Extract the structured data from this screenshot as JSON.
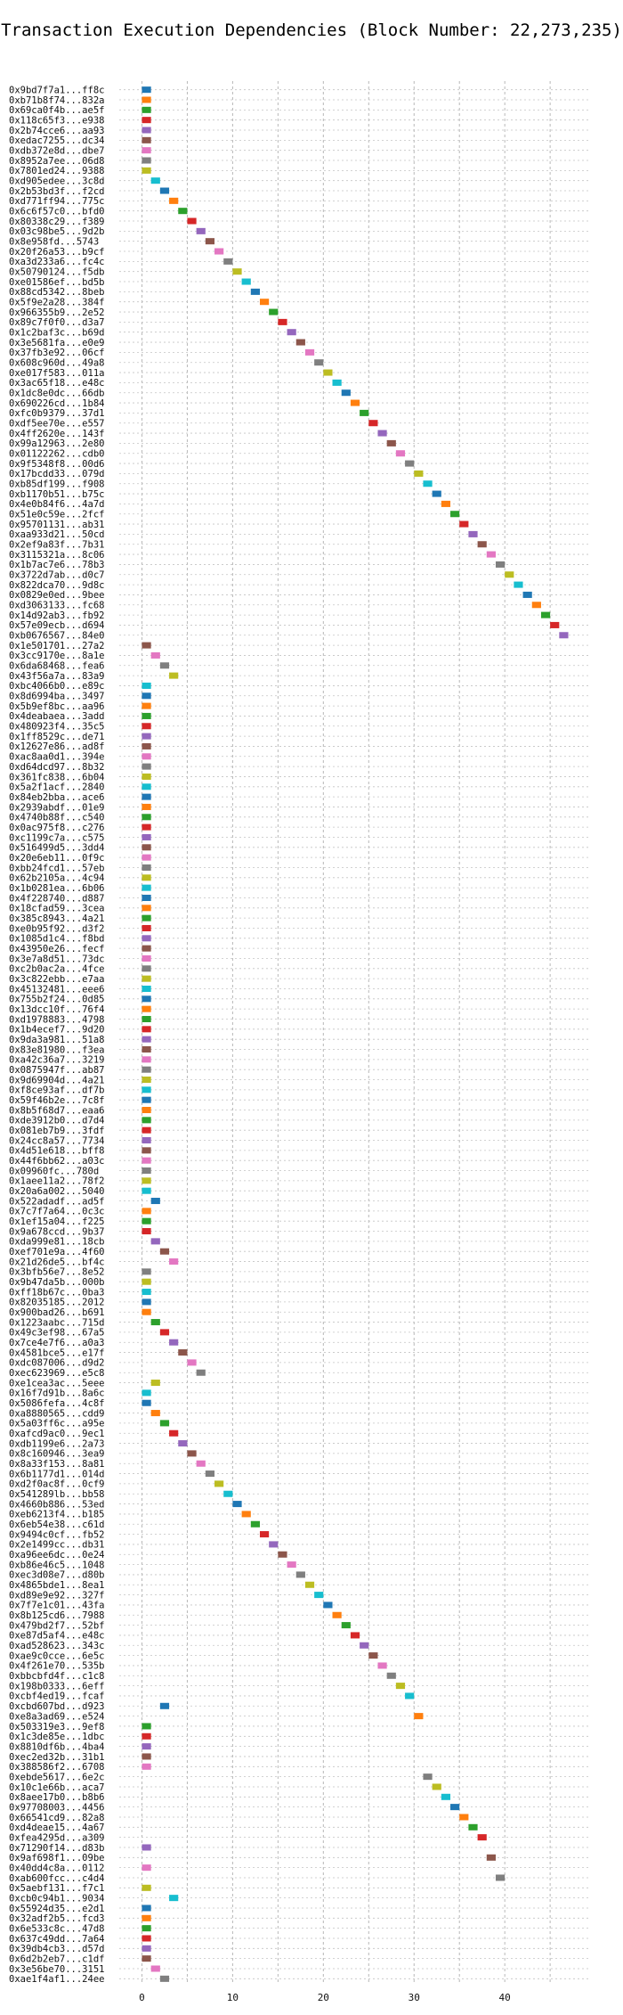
{
  "chart_data": {
    "type": "bar",
    "orientation": "horizontal",
    "title": "Transaction Execution Dependencies (Block Number: 22,273,235)",
    "xlabel": "",
    "ylabel": "",
    "xlim": [
      -2.5,
      49.5
    ],
    "xticks": [
      0,
      10,
      20,
      30,
      40
    ],
    "grid": true,
    "bar_width": 1,
    "palette": [
      "#1f77b4",
      "#ff7f0e",
      "#2ca02c",
      "#d62728",
      "#9467bd",
      "#8c564b",
      "#e377c2",
      "#7f7f7f",
      "#bcbd22",
      "#17becf"
    ],
    "transactions": [
      {
        "label": "0x9bd7f7a1...ff8c",
        "start": 0
      },
      {
        "label": "0xb71b8f74...832a",
        "start": 0
      },
      {
        "label": "0x69ca0f4b...ae5f",
        "start": 0
      },
      {
        "label": "0x118c65f3...e938",
        "start": 0
      },
      {
        "label": "0x2b74cce6...aa93",
        "start": 0
      },
      {
        "label": "0xedac7255...dc34",
        "start": 0
      },
      {
        "label": "0xdb372e8d...dbe7",
        "start": 0
      },
      {
        "label": "0x8952a7ee...06d8",
        "start": 0
      },
      {
        "label": "0x7801ed24...9388",
        "start": 0
      },
      {
        "label": "0xd905edee...3c8d",
        "start": 1
      },
      {
        "label": "0x2b53bd3f...f2cd",
        "start": 2
      },
      {
        "label": "0xd771ff94...775c",
        "start": 3
      },
      {
        "label": "0x6c6f57c0...bfd0",
        "start": 4
      },
      {
        "label": "0x80338c29...f389",
        "start": 5
      },
      {
        "label": "0x03c98be5...9d2b",
        "start": 6
      },
      {
        "label": "0x8e958fd...5743",
        "start": 7
      },
      {
        "label": "0x20f26a53...b9cf",
        "start": 8
      },
      {
        "label": "0xa3d233a6...fc4c",
        "start": 9
      },
      {
        "label": "0x50790124...f5db",
        "start": 10
      },
      {
        "label": "0xe01586ef...bd5b",
        "start": 11
      },
      {
        "label": "0x88cd5342...8beb",
        "start": 12
      },
      {
        "label": "0x5f9e2a28...384f",
        "start": 13
      },
      {
        "label": "0x966355b9...2e52",
        "start": 14
      },
      {
        "label": "0x89c7f0f0...d3a7",
        "start": 15
      },
      {
        "label": "0x1c2baf3c...b69d",
        "start": 16
      },
      {
        "label": "0x3e5681fa...e0e9",
        "start": 17
      },
      {
        "label": "0x37fb3e92...06cf",
        "start": 18
      },
      {
        "label": "0x608c960d...49a8",
        "start": 19
      },
      {
        "label": "0xe017f583...011a",
        "start": 20
      },
      {
        "label": "0x3ac65f18...e48c",
        "start": 21
      },
      {
        "label": "0x1dc8e0dc...66db",
        "start": 22
      },
      {
        "label": "0x690226cd...1b84",
        "start": 23
      },
      {
        "label": "0xfc0b9379...37d1",
        "start": 24
      },
      {
        "label": "0xdf5ee70e...e557",
        "start": 25
      },
      {
        "label": "0x4ff2620e...143f",
        "start": 26
      },
      {
        "label": "0x99a12963...2e80",
        "start": 27
      },
      {
        "label": "0x01122262...cdb0",
        "start": 28
      },
      {
        "label": "0x9f5348f8...00d6",
        "start": 29
      },
      {
        "label": "0x17bcdd33...079d",
        "start": 30
      },
      {
        "label": "0xb85df199...f908",
        "start": 31
      },
      {
        "label": "0xb1170b51...b75c",
        "start": 32
      },
      {
        "label": "0x4e0b84f6...4a7d",
        "start": 33
      },
      {
        "label": "0x51e0c59e...2fcf",
        "start": 34
      },
      {
        "label": "0x95701131...ab31",
        "start": 35
      },
      {
        "label": "0xaa933d21...50cd",
        "start": 36
      },
      {
        "label": "0x2ef9a83f...7b31",
        "start": 37
      },
      {
        "label": "0x3115321a...8c06",
        "start": 38
      },
      {
        "label": "0x1b7ac7e6...78b3",
        "start": 39
      },
      {
        "label": "0x3722d7ab...d0c7",
        "start": 40
      },
      {
        "label": "0x822dca70...9d8c",
        "start": 41
      },
      {
        "label": "0x0829e0ed...9bee",
        "start": 42
      },
      {
        "label": "0xd3063133...fc68",
        "start": 43
      },
      {
        "label": "0x14d92ab3...fb92",
        "start": 44
      },
      {
        "label": "0x57e09ecb...d694",
        "start": 45
      },
      {
        "label": "0xb0676567...84e0",
        "start": 46
      },
      {
        "label": "0x1e501701...27a2",
        "start": 0
      },
      {
        "label": "0x3cc9170e...8a1e",
        "start": 1
      },
      {
        "label": "0x6da68468...fea6",
        "start": 2
      },
      {
        "label": "0x43f56a7a...83a9",
        "start": 3
      },
      {
        "label": "0xbc4066b0...e89c",
        "start": 0
      },
      {
        "label": "0x8d6994ba...3497",
        "start": 0
      },
      {
        "label": "0x5b9ef8bc...aa96",
        "start": 0
      },
      {
        "label": "0x4deabaea...3add",
        "start": 0
      },
      {
        "label": "0x480923f4...35c5",
        "start": 0
      },
      {
        "label": "0x1ff8529c...de71",
        "start": 0
      },
      {
        "label": "0x12627e86...ad8f",
        "start": 0
      },
      {
        "label": "0xac8aa0d1...394e",
        "start": 0
      },
      {
        "label": "0xd64dcd97...8b32",
        "start": 0
      },
      {
        "label": "0x361fc838...6b04",
        "start": 0
      },
      {
        "label": "0x5a2f1acf...2840",
        "start": 0
      },
      {
        "label": "0x84eb2bba...ace6",
        "start": 0
      },
      {
        "label": "0x2939abdf...01e9",
        "start": 0
      },
      {
        "label": "0x4740b88f...c540",
        "start": 0
      },
      {
        "label": "0x0ac975f8...c276",
        "start": 0
      },
      {
        "label": "0xc1199c7a...c575",
        "start": 0
      },
      {
        "label": "0x516499d5...3dd4",
        "start": 0
      },
      {
        "label": "0x20e6eb11...0f9c",
        "start": 0
      },
      {
        "label": "0xbb24fcd1...57eb",
        "start": 0
      },
      {
        "label": "0x62b2105a...4c94",
        "start": 0
      },
      {
        "label": "0x1b0281ea...6b06",
        "start": 0
      },
      {
        "label": "0x4f228740...d887",
        "start": 0
      },
      {
        "label": "0x18cfad59...3cea",
        "start": 0
      },
      {
        "label": "0x385c8943...4a21",
        "start": 0
      },
      {
        "label": "0xe0b95f92...d3f2",
        "start": 0
      },
      {
        "label": "0x1085d1c4...f8bd",
        "start": 0
      },
      {
        "label": "0x43950e26...fecf",
        "start": 0
      },
      {
        "label": "0x3e7a8d51...73dc",
        "start": 0
      },
      {
        "label": "0xc2b0ac2a...4fce",
        "start": 0
      },
      {
        "label": "0x3c822ebb...e7aa",
        "start": 0
      },
      {
        "label": "0x45132481...eee6",
        "start": 0
      },
      {
        "label": "0x755b2f24...0d85",
        "start": 0
      },
      {
        "label": "0x13dcc10f...76f4",
        "start": 0
      },
      {
        "label": "0xd1978883...4798",
        "start": 0
      },
      {
        "label": "0x1b4ecef7...9d20",
        "start": 0
      },
      {
        "label": "0x9da3a981...51a8",
        "start": 0
      },
      {
        "label": "0x83e81980...f3ea",
        "start": 0
      },
      {
        "label": "0xa42c36a7...3219",
        "start": 0
      },
      {
        "label": "0x0875947f...ab87",
        "start": 0
      },
      {
        "label": "0x9d69904d...4a21",
        "start": 0
      },
      {
        "label": "0xf8ce93af...df7b",
        "start": 0
      },
      {
        "label": "0x59f46b2e...7c8f",
        "start": 0
      },
      {
        "label": "0x8b5f68d7...eaa6",
        "start": 0
      },
      {
        "label": "0xde3912b0...d7d4",
        "start": 0
      },
      {
        "label": "0x081eb7b9...3fdf",
        "start": 0
      },
      {
        "label": "0x24cc8a57...7734",
        "start": 0
      },
      {
        "label": "0x4d51e618...bff8",
        "start": 0
      },
      {
        "label": "0x44f6bb62...a03c",
        "start": 0
      },
      {
        "label": "0x09960fc...780d",
        "start": 0
      },
      {
        "label": "0x1aee11a2...78f2",
        "start": 0
      },
      {
        "label": "0x20a6a002...5040",
        "start": 0
      },
      {
        "label": "0x522adadf...ad5f",
        "start": 1
      },
      {
        "label": "0x7c7f7a64...0c3c",
        "start": 0
      },
      {
        "label": "0x1ef15a04...f225",
        "start": 0
      },
      {
        "label": "0x9a678ccd...9b37",
        "start": 0
      },
      {
        "label": "0xda999e81...18cb",
        "start": 1
      },
      {
        "label": "0xef701e9a...4f60",
        "start": 2
      },
      {
        "label": "0x21d26de5...bf4c",
        "start": 3
      },
      {
        "label": "0x3bfb56e7...8e52",
        "start": 0
      },
      {
        "label": "0x9b47da5b...000b",
        "start": 0
      },
      {
        "label": "0xff18b67c...0ba3",
        "start": 0
      },
      {
        "label": "0x82035185...2012",
        "start": 0
      },
      {
        "label": "0x900bad26...b691",
        "start": 0
      },
      {
        "label": "0x1223aabc...715d",
        "start": 1
      },
      {
        "label": "0x49c3ef98...67a5",
        "start": 2
      },
      {
        "label": "0x7ce4e7f6...a0a3",
        "start": 3
      },
      {
        "label": "0x4581bce5...e17f",
        "start": 4
      },
      {
        "label": "0xdc087006...d9d2",
        "start": 5
      },
      {
        "label": "0xec623969...e5c8",
        "start": 6
      },
      {
        "label": "0xe1cea3ac...5eee",
        "start": 1
      },
      {
        "label": "0x16f7d91b...8a6c",
        "start": 0
      },
      {
        "label": "0x5086fefa...4c8f",
        "start": 0
      },
      {
        "label": "0xa8880565...cdd9",
        "start": 1
      },
      {
        "label": "0x5a03ff6c...a95e",
        "start": 2
      },
      {
        "label": "0xafcd9ac0...9ec1",
        "start": 3
      },
      {
        "label": "0xdb1199e6...2a73",
        "start": 4
      },
      {
        "label": "0x8c160946...3ea9",
        "start": 5
      },
      {
        "label": "0x8a33f153...8a81",
        "start": 6
      },
      {
        "label": "0x6b1177d1...014d",
        "start": 7
      },
      {
        "label": "0xd2f0ac8f...0cf9",
        "start": 8
      },
      {
        "label": "0x541289lb...bb58",
        "start": 9
      },
      {
        "label": "0x4660b886...53ed",
        "start": 10
      },
      {
        "label": "0xeb6213f4...b185",
        "start": 11
      },
      {
        "label": "0x6eb54e38...c61d",
        "start": 12
      },
      {
        "label": "0x9494c0cf...fb52",
        "start": 13
      },
      {
        "label": "0x2e1499cc...db31",
        "start": 14
      },
      {
        "label": "0xa96ee6dc...0e24",
        "start": 15
      },
      {
        "label": "0xb86e46c5...1048",
        "start": 16
      },
      {
        "label": "0xec3d08e7...d80b",
        "start": 17
      },
      {
        "label": "0x4865bde1...8ea1",
        "start": 18
      },
      {
        "label": "0xd89e9e92...327f",
        "start": 19
      },
      {
        "label": "0x7f7e1c01...43fa",
        "start": 20
      },
      {
        "label": "0x8b125cd6...7988",
        "start": 21
      },
      {
        "label": "0x479bd2f7...52bf",
        "start": 22
      },
      {
        "label": "0xe87d5af4...e48c",
        "start": 23
      },
      {
        "label": "0xad528623...343c",
        "start": 24
      },
      {
        "label": "0xae9c0cce...6e5c",
        "start": 25
      },
      {
        "label": "0x4f261e70...535b",
        "start": 26
      },
      {
        "label": "0xbbcbfd4f...c1c8",
        "start": 27
      },
      {
        "label": "0x198b0333...6eff",
        "start": 28
      },
      {
        "label": "0xcbf4ed19...fcaf",
        "start": 29
      },
      {
        "label": "0xcbd607bd...d923",
        "start": 2
      },
      {
        "label": "0xe8a3ad69...e524",
        "start": 30
      },
      {
        "label": "0x503319e3...9ef8",
        "start": 0
      },
      {
        "label": "0x1c3de85e...1dbc",
        "start": 0
      },
      {
        "label": "0x8810df6b...4ba4",
        "start": 0
      },
      {
        "label": "0xec2ed32b...31b1",
        "start": 0
      },
      {
        "label": "0x388586f2...6708",
        "start": 0
      },
      {
        "label": "0xebde5617...6e2c",
        "start": 31
      },
      {
        "label": "0x10c1e66b...aca7",
        "start": 32
      },
      {
        "label": "0x8aee17b0...b8b6",
        "start": 33
      },
      {
        "label": "0x97708003...4456",
        "start": 34
      },
      {
        "label": "0x66541cd9...82a8",
        "start": 35
      },
      {
        "label": "0xd4deae15...4a67",
        "start": 36
      },
      {
        "label": "0xfea4295d...a309",
        "start": 37
      },
      {
        "label": "0x71290f14...d83b",
        "start": 0
      },
      {
        "label": "0x9af698f1...09be",
        "start": 38
      },
      {
        "label": "0x40dd4c8a...0112",
        "start": 0
      },
      {
        "label": "0xab600fcc...c4d4",
        "start": 39
      },
      {
        "label": "0x5aebf131...f7c1",
        "start": 0
      },
      {
        "label": "0xcb0c94b1...9034",
        "start": 3
      },
      {
        "label": "0x55924d35...e2d1",
        "start": 0
      },
      {
        "label": "0x32adf2b5...fcd3",
        "start": 0
      },
      {
        "label": "0x6e533c8c...47d8",
        "start": 0
      },
      {
        "label": "0x637c49dd...7a64",
        "start": 0
      },
      {
        "label": "0x39db4cb3...d57d",
        "start": 0
      },
      {
        "label": "0x6d2b2eb7...c1df",
        "start": 0
      },
      {
        "label": "0x3e56be70...3151",
        "start": 1
      },
      {
        "label": "0xae1f4af1...24ee",
        "start": 2
      }
    ]
  }
}
